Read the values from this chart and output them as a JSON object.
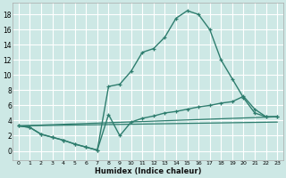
{
  "title": "",
  "xlabel": "Humidex (Indice chaleur)",
  "background_color": "#cde8e5",
  "grid_color": "#b8d8d5",
  "line_color": "#2e7d6e",
  "xlim": [
    -0.5,
    23.5
  ],
  "ylim": [
    -1.2,
    19.5
  ],
  "xticks": [
    0,
    1,
    2,
    3,
    4,
    5,
    6,
    7,
    8,
    9,
    10,
    11,
    12,
    13,
    14,
    15,
    16,
    17,
    18,
    19,
    20,
    21,
    22,
    23
  ],
  "yticks": [
    0,
    2,
    4,
    6,
    8,
    10,
    12,
    14,
    16,
    18
  ],
  "series": [
    {
      "x": [
        0,
        1,
        2,
        3,
        4,
        5,
        6,
        7,
        8,
        9,
        10,
        11,
        12,
        13,
        14,
        15,
        16,
        17,
        18,
        19,
        20,
        21,
        22,
        23
      ],
      "y": [
        3.3,
        3.1,
        2.2,
        1.8,
        1.4,
        0.9,
        0.5,
        0.1,
        8.5,
        8.8,
        10.5,
        13.0,
        13.5,
        15.0,
        17.5,
        18.5,
        18.0,
        16.0,
        12.0,
        9.5,
        7.0,
        5.0,
        4.5,
        4.5
      ]
    },
    {
      "x": [
        0,
        1,
        2,
        3,
        4,
        5,
        6,
        7,
        8,
        9,
        10,
        11,
        12,
        13,
        14,
        15,
        16,
        17,
        18,
        19,
        20,
        21,
        22,
        23
      ],
      "y": [
        3.3,
        3.1,
        2.2,
        1.8,
        1.4,
        0.9,
        0.5,
        0.1,
        4.8,
        2.0,
        3.8,
        4.3,
        4.6,
        5.0,
        5.2,
        5.5,
        5.8,
        6.0,
        6.3,
        6.5,
        7.2,
        5.5,
        4.5,
        4.5
      ]
    },
    {
      "x": [
        0,
        23
      ],
      "y": [
        3.3,
        4.5
      ]
    },
    {
      "x": [
        0,
        23
      ],
      "y": [
        3.3,
        3.8
      ]
    }
  ]
}
